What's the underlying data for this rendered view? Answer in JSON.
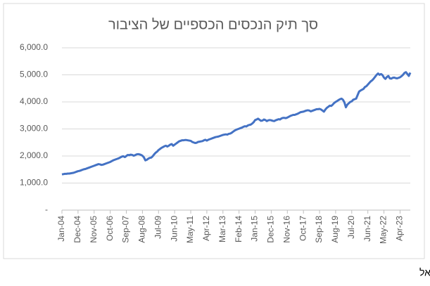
{
  "chart_data": {
    "type": "line",
    "title": "סך תיק הנכסים הכספיים של הציבור",
    "source": "המקור: בנק ישראל",
    "categories": [
      "Jan-04",
      null,
      null,
      null,
      null,
      null,
      null,
      null,
      null,
      null,
      null,
      "Dec-04",
      null,
      null,
      null,
      null,
      null,
      null,
      null,
      null,
      null,
      null,
      "Nov-05",
      null,
      null,
      null,
      null,
      null,
      null,
      null,
      null,
      null,
      null,
      "Oct-06",
      null,
      null,
      null,
      null,
      null,
      null,
      null,
      null,
      null,
      null,
      "Sep-07",
      null,
      null,
      null,
      null,
      null,
      null,
      null,
      null,
      null,
      null,
      "Aug-08",
      null,
      null,
      null,
      null,
      null,
      null,
      null,
      null,
      null,
      null,
      "Jul-09",
      null,
      null,
      null,
      null,
      null,
      null,
      null,
      null,
      null,
      null,
      "Jun-10",
      null,
      null,
      null,
      null,
      null,
      null,
      null,
      null,
      null,
      null,
      "May-11",
      null,
      null,
      null,
      null,
      null,
      null,
      null,
      null,
      null,
      null,
      "Apr-12",
      null,
      null,
      null,
      null,
      null,
      null,
      null,
      null,
      null,
      null,
      "Mar-13",
      null,
      null,
      null,
      null,
      null,
      null,
      null,
      null,
      null,
      null,
      "Feb-14",
      null,
      null,
      null,
      null,
      null,
      null,
      null,
      null,
      null,
      null,
      "Jan-15",
      null,
      null,
      null,
      null,
      null,
      null,
      null,
      null,
      null,
      null,
      "Dec-15",
      null,
      null,
      null,
      null,
      null,
      null,
      null,
      null,
      null,
      null,
      "Nov-16",
      null,
      null,
      null,
      null,
      null,
      null,
      null,
      null,
      null,
      null,
      "Oct-17",
      null,
      null,
      null,
      null,
      null,
      null,
      null,
      null,
      null,
      null,
      "Sep-18",
      null,
      null,
      null,
      null,
      null,
      null,
      null,
      null,
      null,
      null,
      "Aug-19",
      null,
      null,
      null,
      null,
      null,
      null,
      null,
      null,
      null,
      null,
      "Jul-20",
      null,
      null,
      null,
      null,
      null,
      null,
      null,
      null,
      null,
      null,
      "Jun-21",
      null,
      null,
      null,
      null,
      null,
      null,
      null,
      null,
      null,
      null,
      "May-22",
      null,
      null,
      null,
      null,
      null,
      null,
      null,
      null,
      null,
      null,
      "Apr-23",
      null,
      null,
      null,
      null,
      null,
      null,
      null
    ],
    "series": [
      {
        "color": "#4472c4",
        "values": [
          1320,
          1330,
          1340,
          1340,
          1350,
          1350,
          1360,
          1370,
          1380,
          1400,
          1420,
          1440,
          1450,
          1470,
          1490,
          1510,
          1520,
          1540,
          1560,
          1580,
          1600,
          1620,
          1640,
          1660,
          1680,
          1700,
          1690,
          1670,
          1680,
          1700,
          1720,
          1740,
          1760,
          1780,
          1810,
          1840,
          1860,
          1880,
          1900,
          1920,
          1950,
          1980,
          1990,
          1960,
          2000,
          2040,
          2030,
          2050,
          2040,
          2010,
          2030,
          2060,
          2070,
          2060,
          2040,
          2010,
          1950,
          1840,
          1860,
          1900,
          1930,
          1940,
          1990,
          2060,
          2120,
          2160,
          2220,
          2260,
          2300,
          2330,
          2360,
          2380,
          2350,
          2380,
          2420,
          2440,
          2380,
          2420,
          2460,
          2500,
          2540,
          2560,
          2580,
          2580,
          2590,
          2590,
          2580,
          2570,
          2560,
          2520,
          2500,
          2480,
          2490,
          2520,
          2530,
          2540,
          2550,
          2580,
          2600,
          2570,
          2600,
          2620,
          2640,
          2660,
          2680,
          2700,
          2710,
          2720,
          2740,
          2760,
          2780,
          2790,
          2800,
          2790,
          2820,
          2830,
          2860,
          2900,
          2940,
          2970,
          2990,
          3010,
          3030,
          3050,
          3080,
          3100,
          3090,
          3130,
          3150,
          3160,
          3200,
          3250,
          3330,
          3350,
          3380,
          3340,
          3300,
          3310,
          3350,
          3330,
          3290,
          3320,
          3330,
          3320,
          3300,
          3290,
          3320,
          3340,
          3360,
          3350,
          3390,
          3410,
          3410,
          3400,
          3420,
          3450,
          3480,
          3500,
          3520,
          3520,
          3540,
          3560,
          3590,
          3620,
          3630,
          3640,
          3660,
          3680,
          3690,
          3680,
          3650,
          3670,
          3690,
          3710,
          3730,
          3730,
          3740,
          3720,
          3680,
          3640,
          3720,
          3780,
          3820,
          3860,
          3850,
          3900,
          3960,
          4000,
          4030,
          4070,
          4100,
          4120,
          4080,
          3980,
          3800,
          3900,
          3950,
          4000,
          4020,
          4080,
          4100,
          4120,
          4250,
          4380,
          4420,
          4450,
          4480,
          4550,
          4580,
          4640,
          4700,
          4760,
          4800,
          4860,
          4930,
          5000,
          5050,
          5000,
          5030,
          4990,
          4900,
          4850,
          4920,
          4960,
          4870,
          4860,
          4890,
          4900,
          4880,
          4870,
          4890,
          4910,
          4950,
          5000,
          5070,
          5100,
          5030,
          4960,
          5080
        ]
      }
    ],
    "ylim": [
      0,
      6000
    ],
    "yticks": [
      {
        "value": 0,
        "label": "-"
      },
      {
        "value": 1000,
        "label": "1,000.0"
      },
      {
        "value": 2000,
        "label": "2,000.0"
      },
      {
        "value": 3000,
        "label": "3,000.0"
      },
      {
        "value": 4000,
        "label": "4,000.0"
      },
      {
        "value": 5000,
        "label": "5,000.0"
      },
      {
        "value": 6000,
        "label": "6,000.0"
      }
    ],
    "grid": true
  }
}
